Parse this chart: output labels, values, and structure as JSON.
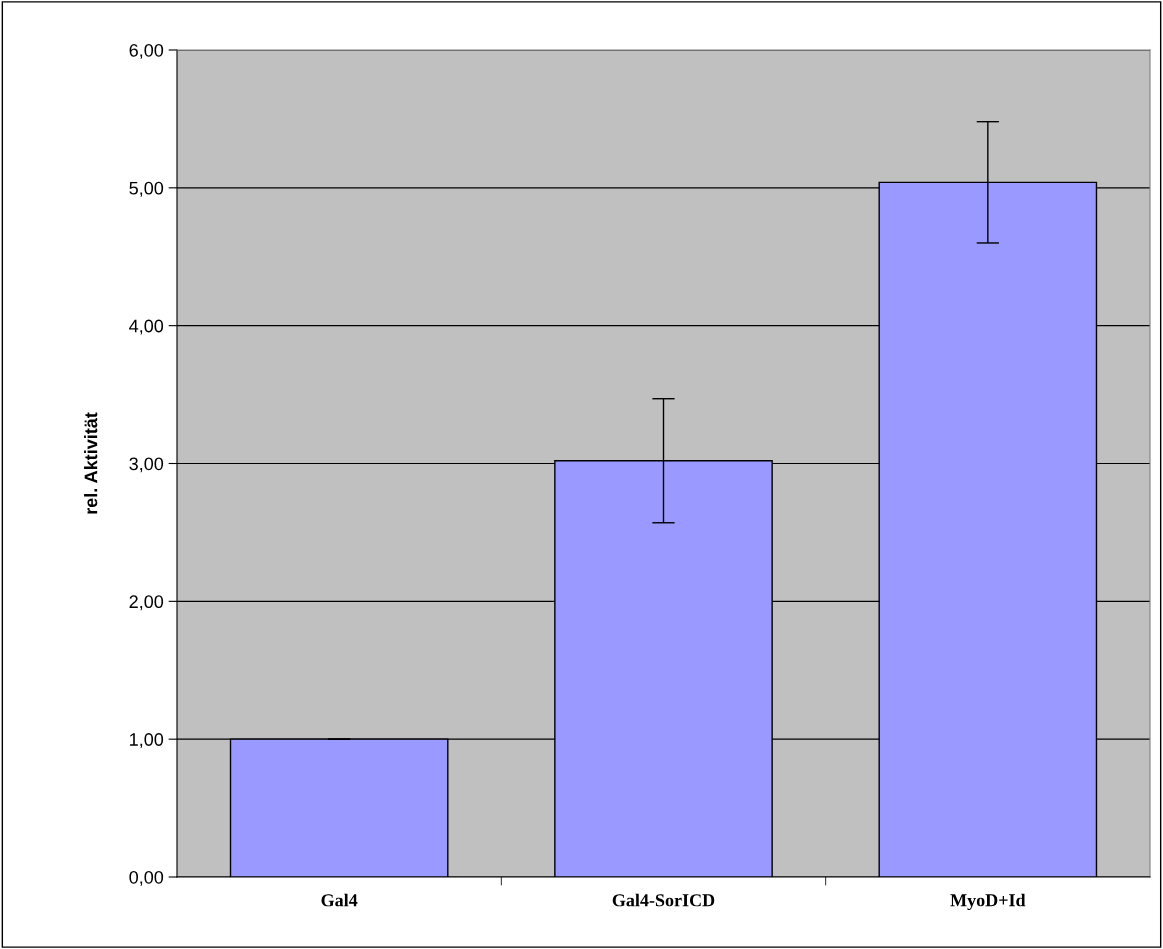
{
  "chart_data": {
    "type": "bar",
    "ylabel": "rel. Aktivität",
    "categories": [
      "Gal4",
      "Gal4-SorICD",
      "MyoD+Id"
    ],
    "values": [
      1.0,
      3.02,
      5.04
    ],
    "errors": [
      0,
      0.45,
      0.44
    ],
    "color": "#9999ff",
    "ylim": [
      0,
      6
    ],
    "yticks": [
      {
        "value": 0,
        "label": "0,00"
      },
      {
        "value": 1,
        "label": "1,00"
      },
      {
        "value": 2,
        "label": "2,00"
      },
      {
        "value": 3,
        "label": "3,00"
      },
      {
        "value": 4,
        "label": "4,00"
      },
      {
        "value": 5,
        "label": "5,00"
      },
      {
        "value": 6,
        "label": "6,00"
      }
    ],
    "grid": "y",
    "legend": false
  }
}
